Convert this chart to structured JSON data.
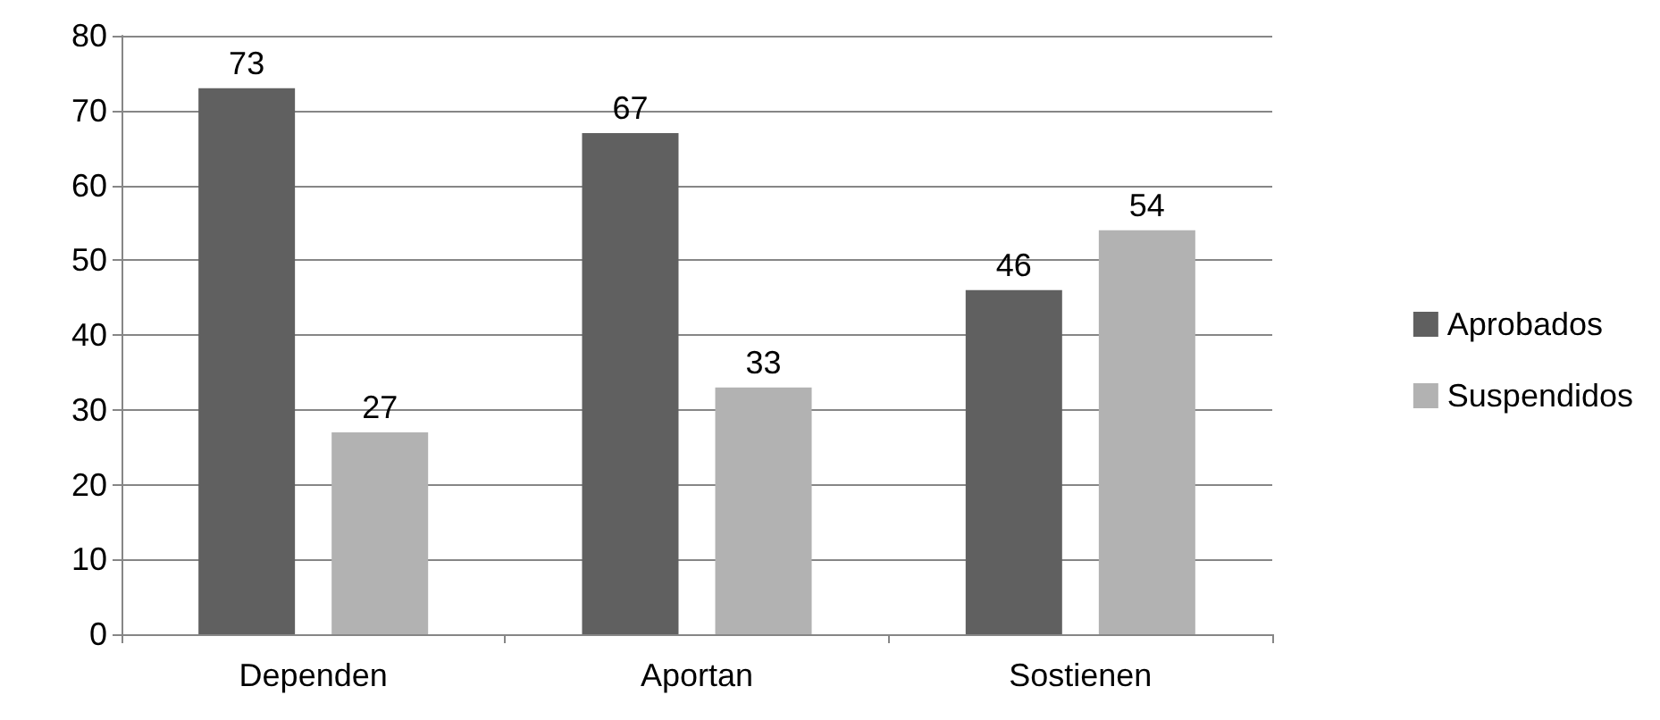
{
  "chart_data": {
    "type": "bar",
    "categories": [
      "Dependen",
      "Aportan",
      "Sostienen"
    ],
    "series": [
      {
        "name": "Aprobados",
        "color": "#606060",
        "values": [
          73,
          67,
          46
        ]
      },
      {
        "name": "Suspendidos",
        "color": "#b2b2b2",
        "values": [
          27,
          33,
          54
        ]
      }
    ],
    "ylim": [
      0,
      80
    ],
    "yticks": [
      0,
      10,
      20,
      30,
      40,
      50,
      60,
      70,
      80
    ],
    "grid": "y",
    "legend": "right",
    "data_labels": true
  }
}
